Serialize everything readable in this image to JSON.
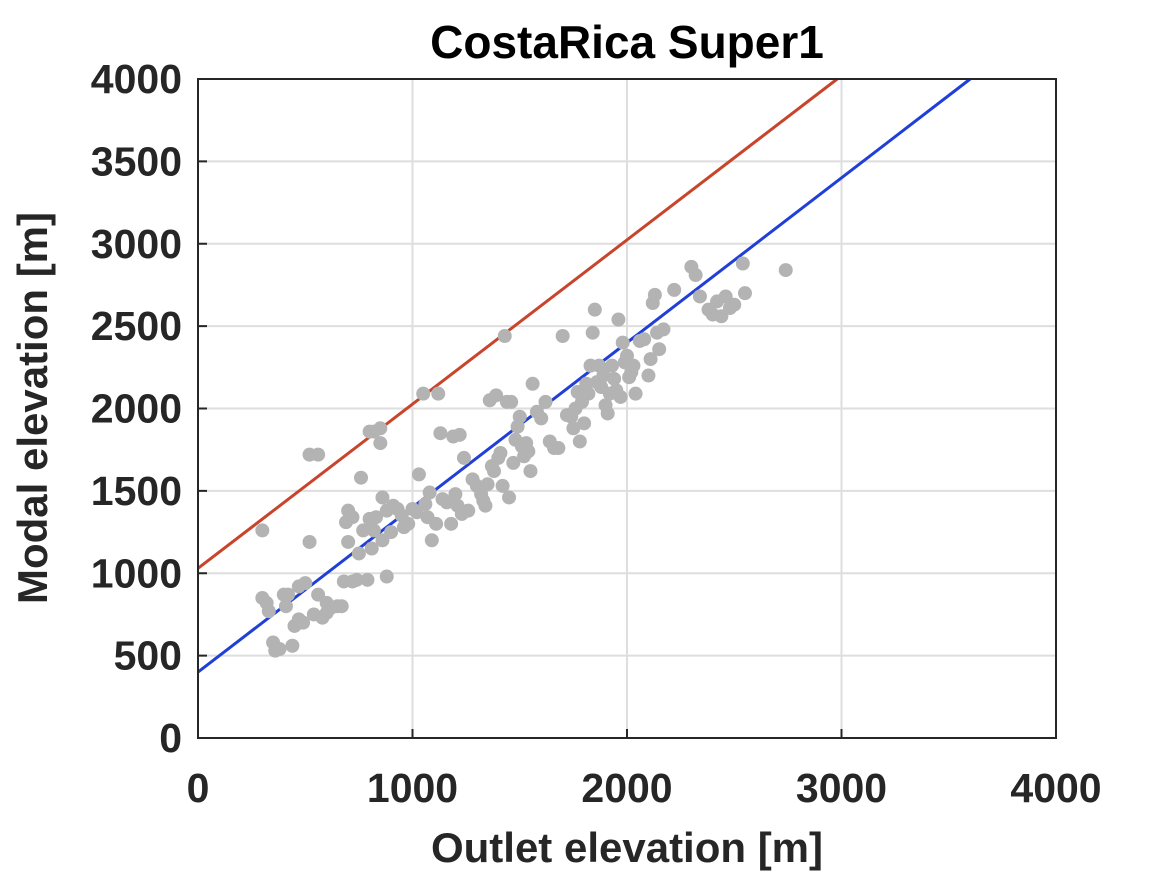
{
  "chart_data": {
    "type": "scatter",
    "title": "CostaRica Super1",
    "xlabel": "Outlet elevation [m]",
    "ylabel": "Modal elevation [m]",
    "xlim": [
      0,
      4000
    ],
    "ylim": [
      0,
      4000
    ],
    "xticks": [
      "0",
      "1000",
      "2000",
      "3000",
      "4000"
    ],
    "yticks": [
      "0",
      "500",
      "1000",
      "1500",
      "2000",
      "2500",
      "3000",
      "3500",
      "4000"
    ],
    "grid": true,
    "colors": {
      "points": "#b3b3b3",
      "red_line": "#c8452c",
      "blue_line": "#1f3fd8"
    },
    "lines": [
      {
        "color": "#c8452c",
        "x": [
          0,
          2980
        ],
        "y": [
          1030,
          4000
        ]
      },
      {
        "color": "#1f3fd8",
        "x": [
          0,
          3600
        ],
        "y": [
          400,
          4000
        ]
      }
    ],
    "points": [
      [
        300,
        1260
      ],
      [
        300,
        850
      ],
      [
        320,
        820
      ],
      [
        330,
        770
      ],
      [
        350,
        580
      ],
      [
        360,
        530
      ],
      [
        380,
        540
      ],
      [
        400,
        870
      ],
      [
        410,
        800
      ],
      [
        420,
        870
      ],
      [
        440,
        560
      ],
      [
        450,
        680
      ],
      [
        470,
        720
      ],
      [
        470,
        920
      ],
      [
        490,
        700
      ],
      [
        500,
        940
      ],
      [
        520,
        1190
      ],
      [
        520,
        1720
      ],
      [
        540,
        750
      ],
      [
        560,
        1720
      ],
      [
        560,
        870
      ],
      [
        580,
        730
      ],
      [
        600,
        820
      ],
      [
        600,
        760
      ],
      [
        620,
        790
      ],
      [
        650,
        800
      ],
      [
        670,
        800
      ],
      [
        680,
        950
      ],
      [
        690,
        1310
      ],
      [
        700,
        1380
      ],
      [
        700,
        1190
      ],
      [
        720,
        1340
      ],
      [
        720,
        950
      ],
      [
        740,
        960
      ],
      [
        750,
        1120
      ],
      [
        760,
        1580
      ],
      [
        770,
        1260
      ],
      [
        790,
        960
      ],
      [
        800,
        1330
      ],
      [
        800,
        1860
      ],
      [
        810,
        1150
      ],
      [
        820,
        1260
      ],
      [
        820,
        1860
      ],
      [
        830,
        1340
      ],
      [
        850,
        1880
      ],
      [
        850,
        1790
      ],
      [
        860,
        1460
      ],
      [
        860,
        1200
      ],
      [
        880,
        1380
      ],
      [
        880,
        980
      ],
      [
        900,
        1250
      ],
      [
        910,
        1410
      ],
      [
        930,
        1390
      ],
      [
        950,
        1350
      ],
      [
        960,
        1280
      ],
      [
        980,
        1300
      ],
      [
        1000,
        1390
      ],
      [
        1020,
        1370
      ],
      [
        1030,
        1600
      ],
      [
        1050,
        2090
      ],
      [
        1060,
        1420
      ],
      [
        1070,
        1340
      ],
      [
        1080,
        1490
      ],
      [
        1090,
        1200
      ],
      [
        1110,
        1300
      ],
      [
        1120,
        2090
      ],
      [
        1130,
        1850
      ],
      [
        1140,
        1450
      ],
      [
        1160,
        1430
      ],
      [
        1180,
        1300
      ],
      [
        1190,
        1830
      ],
      [
        1200,
        1480
      ],
      [
        1210,
        1410
      ],
      [
        1220,
        1840
      ],
      [
        1230,
        1360
      ],
      [
        1240,
        1700
      ],
      [
        1260,
        1380
      ],
      [
        1280,
        1570
      ],
      [
        1300,
        1530
      ],
      [
        1320,
        1480
      ],
      [
        1330,
        1440
      ],
      [
        1340,
        1410
      ],
      [
        1350,
        1540
      ],
      [
        1360,
        2050
      ],
      [
        1370,
        1650
      ],
      [
        1380,
        1620
      ],
      [
        1390,
        2080
      ],
      [
        1400,
        1700
      ],
      [
        1410,
        1730
      ],
      [
        1420,
        1530
      ],
      [
        1430,
        2440
      ],
      [
        1440,
        2040
      ],
      [
        1450,
        1460
      ],
      [
        1460,
        2040
      ],
      [
        1470,
        1670
      ],
      [
        1480,
        1810
      ],
      [
        1490,
        1890
      ],
      [
        1500,
        1950
      ],
      [
        1510,
        1770
      ],
      [
        1520,
        1710
      ],
      [
        1530,
        1790
      ],
      [
        1540,
        1740
      ],
      [
        1550,
        1620
      ],
      [
        1560,
        2150
      ],
      [
        1580,
        1980
      ],
      [
        1600,
        1940
      ],
      [
        1620,
        2040
      ],
      [
        1640,
        1800
      ],
      [
        1660,
        1760
      ],
      [
        1680,
        1760
      ],
      [
        1700,
        2440
      ],
      [
        1720,
        1960
      ],
      [
        1740,
        1950
      ],
      [
        1750,
        1880
      ],
      [
        1760,
        2000
      ],
      [
        1770,
        2100
      ],
      [
        1780,
        1800
      ],
      [
        1790,
        2040
      ],
      [
        1800,
        1910
      ],
      [
        1810,
        2150
      ],
      [
        1820,
        2090
      ],
      [
        1830,
        2260
      ],
      [
        1840,
        2460
      ],
      [
        1850,
        2600
      ],
      [
        1860,
        2160
      ],
      [
        1870,
        2260
      ],
      [
        1880,
        2130
      ],
      [
        1890,
        2200
      ],
      [
        1900,
        2020
      ],
      [
        1910,
        1970
      ],
      [
        1920,
        2090
      ],
      [
        1930,
        2260
      ],
      [
        1940,
        2180
      ],
      [
        1950,
        2110
      ],
      [
        1960,
        2540
      ],
      [
        1970,
        2070
      ],
      [
        1980,
        2400
      ],
      [
        1990,
        2280
      ],
      [
        2000,
        2320
      ],
      [
        2010,
        2190
      ],
      [
        2020,
        2220
      ],
      [
        2030,
        2260
      ],
      [
        2040,
        2090
      ],
      [
        2060,
        2410
      ],
      [
        2080,
        2420
      ],
      [
        2100,
        2200
      ],
      [
        2110,
        2300
      ],
      [
        2120,
        2640
      ],
      [
        2130,
        2690
      ],
      [
        2140,
        2460
      ],
      [
        2150,
        2360
      ],
      [
        2170,
        2480
      ],
      [
        2220,
        2720
      ],
      [
        2300,
        2860
      ],
      [
        2320,
        2810
      ],
      [
        2340,
        2680
      ],
      [
        2380,
        2600
      ],
      [
        2400,
        2570
      ],
      [
        2420,
        2650
      ],
      [
        2440,
        2560
      ],
      [
        2460,
        2680
      ],
      [
        2480,
        2610
      ],
      [
        2500,
        2630
      ],
      [
        2540,
        2880
      ],
      [
        2550,
        2700
      ],
      [
        2740,
        2840
      ]
    ]
  }
}
